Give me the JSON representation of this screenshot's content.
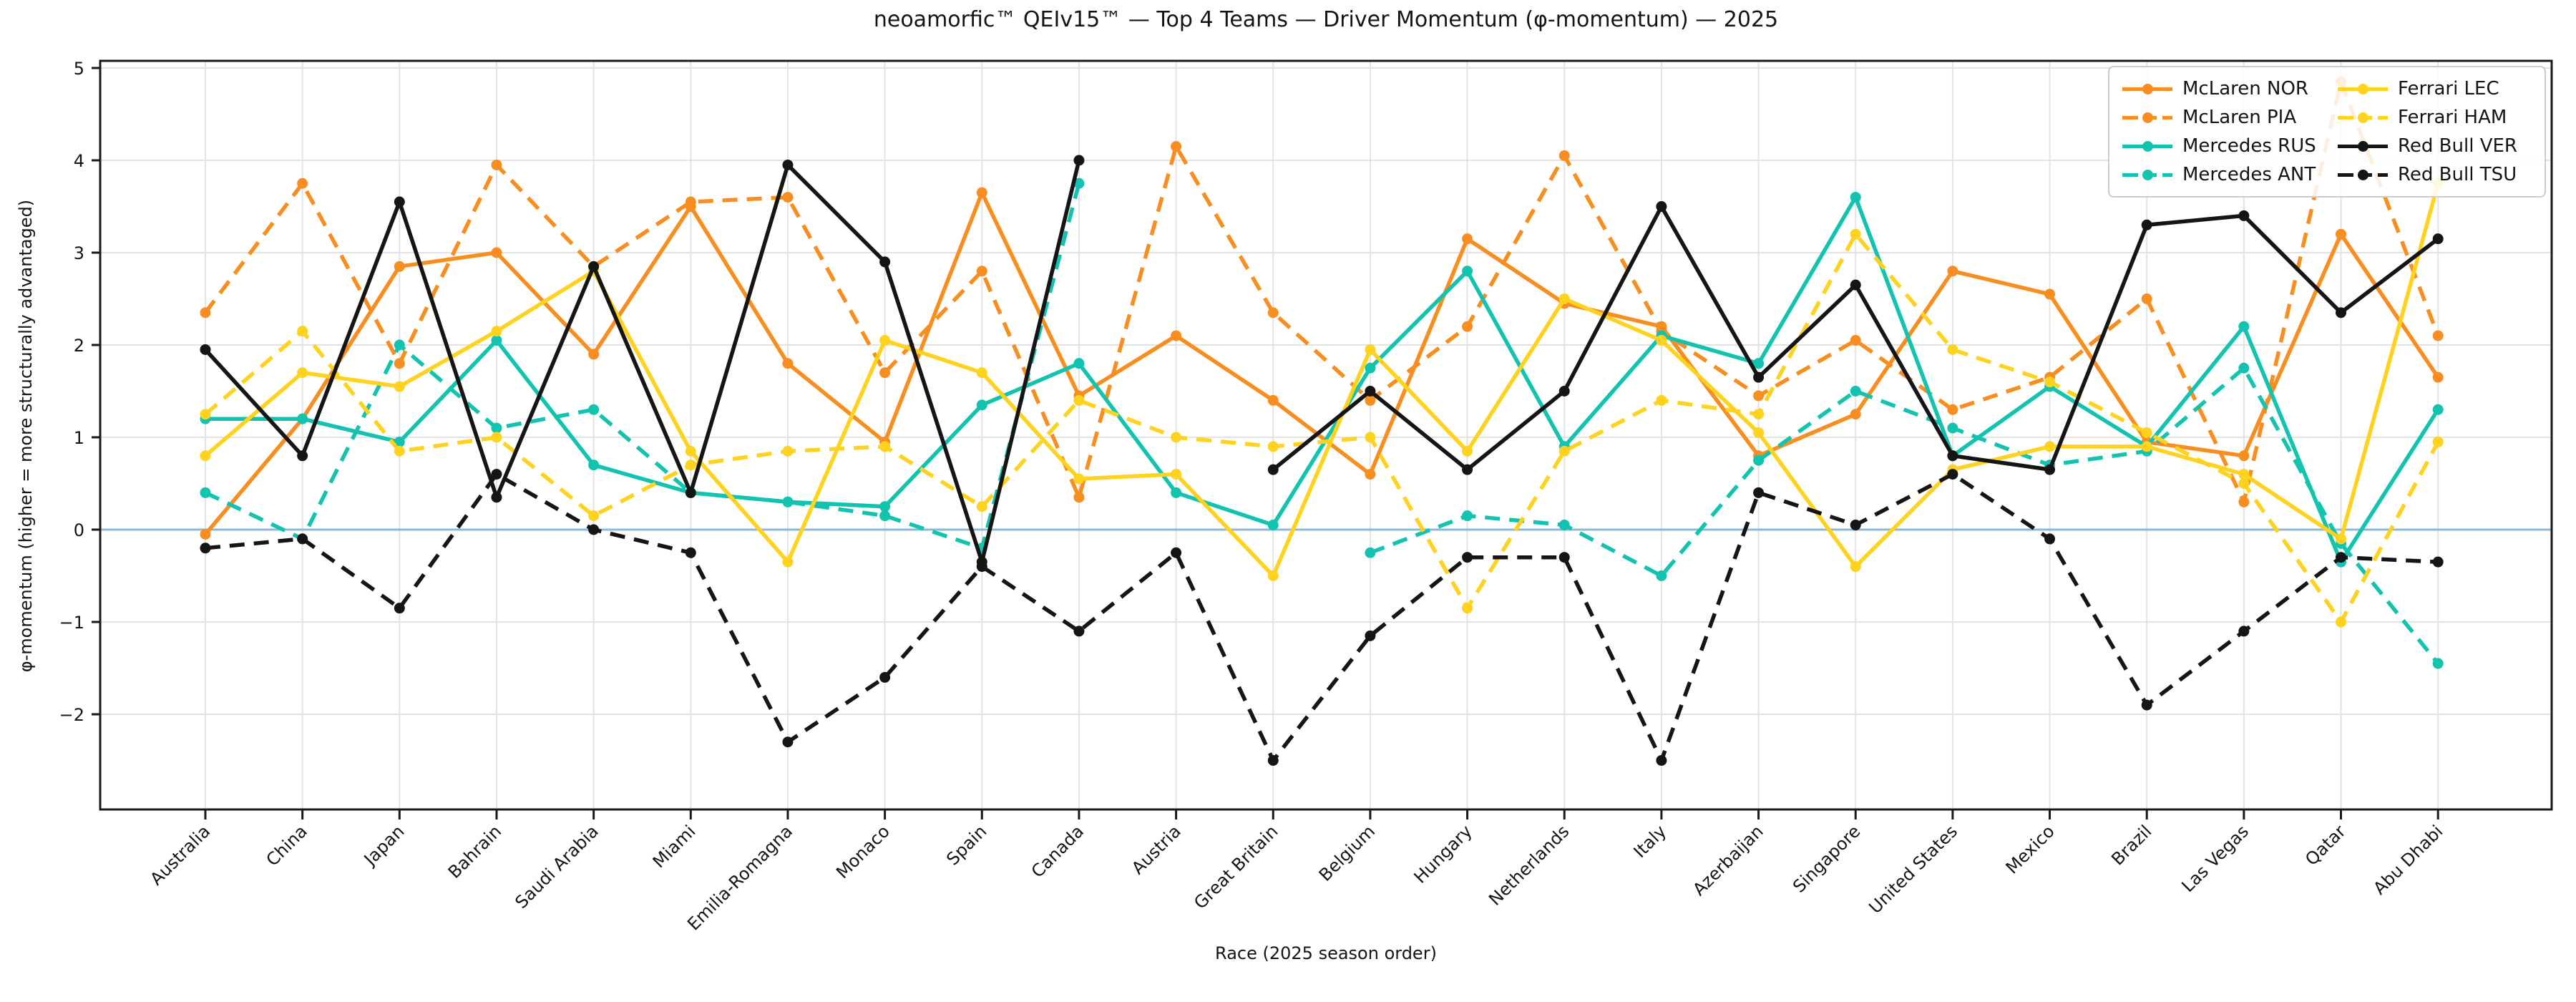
{
  "chart_data": {
    "type": "line",
    "title": "neoamorfic™  QEIv15™ — Top 4 Teams — Driver Momentum (φ-momentum) — 2025",
    "xlabel": "Race (2025 season order)",
    "ylabel": "φ-momentum (higher = more structurally advantaged)",
    "categories": [
      "Australia",
      "China",
      "Japan",
      "Bahrain",
      "Saudi Arabia",
      "Miami",
      "Emilia-Romagna",
      "Monaco",
      "Spain",
      "Canada",
      "Austria",
      "Great Britain",
      "Belgium",
      "Hungary",
      "Netherlands",
      "Italy",
      "Azerbaijan",
      "Singapore",
      "United States",
      "Mexico",
      "Brazil",
      "Las Vegas",
      "Qatar",
      "Abu Dhabi"
    ],
    "y_ticks": [
      5,
      4,
      3,
      2,
      1,
      0,
      -1,
      -2
    ],
    "ylim": [
      -3.05,
      5.1
    ],
    "grid": true,
    "grid_color": "#e3e3e3",
    "zero_line_color": "#8cb9da",
    "spine_color": "#1a1a1a",
    "legend_position": "upper right",
    "legend_columns": 2,
    "series": [
      {
        "name": "McLaren NOR",
        "color": "#F98E20",
        "dash": false,
        "values": [
          -0.05,
          1.2,
          2.85,
          3.0,
          1.9,
          3.5,
          1.8,
          0.95,
          3.65,
          1.45,
          2.1,
          1.4,
          0.6,
          3.15,
          2.45,
          2.2,
          0.8,
          1.25,
          2.8,
          2.55,
          0.95,
          0.8,
          3.2,
          1.65
        ]
      },
      {
        "name": "McLaren PIA",
        "color": "#F98E20",
        "dash": true,
        "values": [
          2.35,
          3.75,
          1.8,
          3.95,
          2.85,
          3.55,
          3.6,
          1.7,
          2.8,
          0.35,
          4.15,
          2.35,
          1.4,
          2.2,
          4.05,
          2.15,
          1.45,
          2.05,
          1.3,
          1.65,
          2.5,
          0.3,
          4.85,
          2.1
        ]
      },
      {
        "name": "Mercedes RUS",
        "color": "#12C4B0",
        "dash": false,
        "values": [
          1.2,
          1.2,
          0.95,
          2.05,
          0.7,
          0.4,
          0.3,
          0.25,
          1.35,
          1.8,
          0.4,
          0.05,
          1.75,
          2.8,
          0.9,
          2.1,
          1.8,
          3.6,
          0.8,
          1.55,
          0.9,
          2.2,
          -0.35,
          1.3
        ]
      },
      {
        "name": "Mercedes ANT",
        "color": "#12C4B0",
        "dash": true,
        "values": [
          0.4,
          -0.1,
          2.0,
          1.1,
          1.3,
          0.4,
          0.3,
          0.15,
          -0.2,
          3.75,
          null,
          null,
          -0.25,
          0.15,
          0.05,
          -0.5,
          0.75,
          1.5,
          1.1,
          0.7,
          0.85,
          1.75,
          -0.15,
          -1.45
        ]
      },
      {
        "name": "Ferrari LEC",
        "color": "#FFD21E",
        "dash": false,
        "values": [
          0.8,
          1.7,
          1.55,
          2.15,
          2.8,
          0.85,
          -0.35,
          2.05,
          1.7,
          0.55,
          0.6,
          -0.5,
          1.95,
          0.85,
          2.5,
          2.05,
          1.05,
          -0.4,
          0.65,
          0.9,
          0.9,
          0.6,
          -0.1,
          3.75
        ]
      },
      {
        "name": "Ferrari HAM",
        "color": "#FFD21E",
        "dash": true,
        "values": [
          1.25,
          2.15,
          0.85,
          1.0,
          0.15,
          0.7,
          0.85,
          0.9,
          0.25,
          1.4,
          1.0,
          0.9,
          1.0,
          -0.85,
          0.85,
          1.4,
          1.25,
          3.2,
          1.95,
          1.6,
          1.05,
          0.5,
          -1.0,
          0.95
        ]
      },
      {
        "name": "Red Bull VER",
        "color": "#151515",
        "dash": false,
        "values": [
          1.95,
          0.8,
          3.55,
          0.35,
          2.85,
          0.4,
          3.95,
          2.9,
          -0.35,
          4.0,
          null,
          0.65,
          1.5,
          0.65,
          1.5,
          3.5,
          1.65,
          2.65,
          0.8,
          0.65,
          3.3,
          3.4,
          2.35,
          3.15
        ]
      },
      {
        "name": "Red Bull TSU",
        "color": "#151515",
        "dash": true,
        "values": [
          -0.2,
          -0.1,
          -0.85,
          0.6,
          0.0,
          -0.25,
          -2.3,
          -1.6,
          -0.4,
          -1.1,
          -0.25,
          -2.5,
          -1.15,
          -0.3,
          -0.3,
          -2.5,
          0.4,
          0.05,
          0.6,
          -0.1,
          -1.9,
          -1.1,
          -0.3,
          -0.35
        ]
      }
    ]
  }
}
